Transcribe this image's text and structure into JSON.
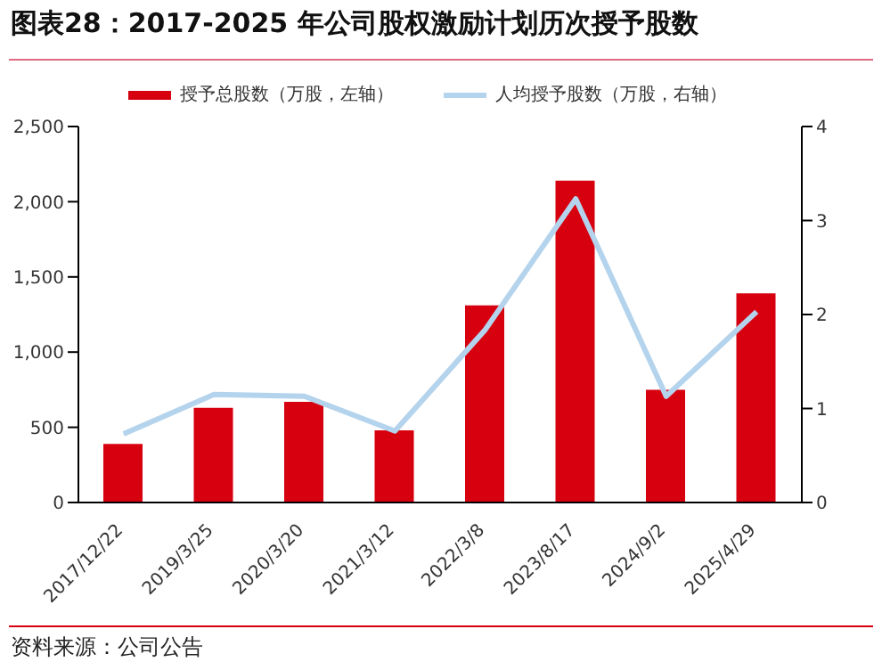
{
  "chart_data": {
    "type": "bar",
    "title": "图表28：2017-2025 年公司股权激励计划历次授予股数",
    "categories": [
      "2017/12/22",
      "2019/3/25",
      "2020/3/20",
      "2021/3/12",
      "2022/3/8",
      "2023/8/17",
      "2024/9/2",
      "2025/4/29"
    ],
    "series": [
      {
        "name": "授予总股数（万股，左轴）",
        "color": "#d7000f",
        "values": [
          390,
          630,
          670,
          480,
          1310,
          2140,
          750,
          1390
        ]
      },
      {
        "name": "人均授予股数（万股，右轴）",
        "type": "line",
        "axis": "y2",
        "color": "#b4d3ec",
        "values": [
          0.73,
          1.15,
          1.13,
          0.76,
          1.84,
          3.23,
          1.13,
          2.03
        ]
      }
    ],
    "ylim": [
      0,
      2500
    ],
    "yticks": [
      0,
      {
        "value": 500,
        "label": "500"
      },
      {
        "value": 1000,
        "label": "1,000"
      },
      {
        "value": 1500,
        "label": "1,500"
      },
      {
        "value": 2000,
        "label": "2,000"
      },
      {
        "value": 2500,
        "label": "2,500"
      }
    ],
    "y2lim": [
      0,
      4
    ],
    "y2ticks": [
      0,
      1,
      2,
      3,
      4
    ],
    "grid": false,
    "legend": "top",
    "marker": "none",
    "annotations": [
      "资料来源：公司公告"
    ]
  }
}
